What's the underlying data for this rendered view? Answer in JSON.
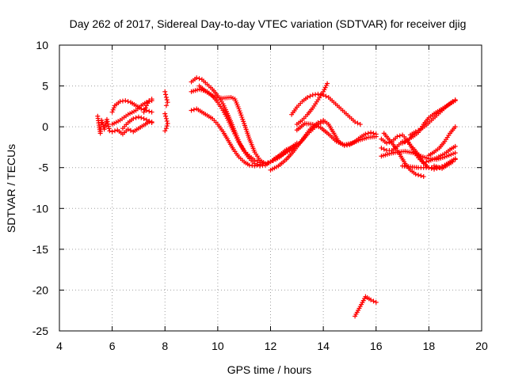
{
  "chart_data": {
    "type": "scatter",
    "title": "Day 262 of 2017, Sidereal Day-to-day VTEC variation (SDTVAR) for receiver djig",
    "xlabel": "GPS time / hours",
    "ylabel": "SDTVAR / TECUs",
    "xlim": [
      4,
      20
    ],
    "ylim": [
      -25,
      10
    ],
    "x_ticks": [
      4,
      6,
      8,
      10,
      12,
      14,
      16,
      18,
      20
    ],
    "y_ticks": [
      -25,
      -20,
      -15,
      -10,
      -5,
      0,
      5,
      10
    ],
    "grid": true,
    "marker": "plus",
    "series_color": "#ff0000",
    "tracks": [
      {
        "name": "t1",
        "points": [
          [
            5.45,
            1.3
          ],
          [
            5.5,
            0.2
          ],
          [
            5.55,
            -0.8
          ],
          [
            5.6,
            0.8
          ],
          [
            5.7,
            -0.3
          ],
          [
            5.8,
            0.9
          ],
          [
            5.9,
            -0.5
          ]
        ]
      },
      {
        "name": "t2",
        "points": [
          [
            6.0,
            -0.6
          ],
          [
            6.2,
            -0.4
          ],
          [
            6.4,
            -0.9
          ],
          [
            6.6,
            -0.3
          ],
          [
            6.8,
            -0.6
          ],
          [
            7.0,
            -0.2
          ],
          [
            7.2,
            0.2
          ],
          [
            7.4,
            0.6
          ],
          [
            7.5,
            0.5
          ]
        ]
      },
      {
        "name": "t3",
        "points": [
          [
            6.0,
            1.8
          ],
          [
            6.1,
            2.6
          ],
          [
            6.3,
            3.1
          ],
          [
            6.5,
            3.2
          ],
          [
            6.7,
            3.0
          ],
          [
            6.9,
            2.6
          ],
          [
            7.1,
            2.2
          ],
          [
            7.3,
            2.0
          ],
          [
            7.5,
            1.8
          ]
        ]
      },
      {
        "name": "t4",
        "points": [
          [
            6.0,
            0.3
          ],
          [
            6.3,
            0.8
          ],
          [
            6.6,
            1.5
          ],
          [
            6.9,
            2.0
          ],
          [
            7.1,
            2.6
          ],
          [
            7.3,
            3.0
          ],
          [
            7.5,
            3.2
          ]
        ]
      },
      {
        "name": "t5",
        "points": [
          [
            6.4,
            -0.2
          ],
          [
            6.6,
            0.5
          ],
          [
            6.8,
            1.0
          ],
          [
            7.0,
            1.2
          ],
          [
            7.2,
            1.0
          ],
          [
            7.4,
            0.7
          ],
          [
            7.5,
            0.6
          ]
        ]
      },
      {
        "name": "t6",
        "points": [
          [
            7.2,
            1.8
          ],
          [
            7.3,
            2.6
          ],
          [
            7.4,
            3.2
          ],
          [
            7.5,
            3.4
          ]
        ]
      },
      {
        "name": "t7",
        "points": [
          [
            8.0,
            4.3
          ],
          [
            8.05,
            3.6
          ],
          [
            8.1,
            3.0
          ],
          [
            8.05,
            2.6
          ]
        ]
      },
      {
        "name": "t8",
        "points": [
          [
            8.0,
            1.6
          ],
          [
            8.05,
            1.0
          ],
          [
            8.1,
            0.4
          ],
          [
            8.05,
            -0.2
          ],
          [
            8.0,
            -0.5
          ]
        ]
      },
      {
        "name": "t9",
        "points": [
          [
            9.0,
            5.5
          ],
          [
            9.2,
            6.0
          ],
          [
            9.4,
            5.8
          ],
          [
            9.6,
            5.2
          ],
          [
            9.8,
            4.6
          ],
          [
            10.0,
            3.8
          ],
          [
            10.2,
            2.8
          ],
          [
            10.4,
            1.4
          ],
          [
            10.6,
            -0.2
          ],
          [
            10.8,
            -1.8
          ],
          [
            11.0,
            -3.0
          ],
          [
            11.2,
            -3.9
          ],
          [
            11.4,
            -4.5
          ],
          [
            11.6,
            -4.8
          ],
          [
            11.8,
            -4.7
          ],
          [
            12.0,
            -4.3
          ],
          [
            12.2,
            -3.8
          ],
          [
            12.5,
            -3.3
          ],
          [
            12.8,
            -2.8
          ],
          [
            13.0,
            -2.3
          ],
          [
            13.2,
            -1.7
          ],
          [
            13.4,
            -0.9
          ],
          [
            13.6,
            -0.3
          ],
          [
            13.8,
            0.3
          ],
          [
            14.0,
            0.6
          ]
        ]
      },
      {
        "name": "t10",
        "points": [
          [
            9.0,
            4.3
          ],
          [
            9.3,
            4.6
          ],
          [
            9.6,
            4.3
          ],
          [
            9.8,
            3.8
          ],
          [
            10.0,
            3.0
          ],
          [
            10.2,
            2.0
          ],
          [
            10.4,
            0.8
          ],
          [
            10.6,
            -0.6
          ],
          [
            10.8,
            -1.9
          ],
          [
            11.0,
            -2.9
          ],
          [
            11.2,
            -3.6
          ],
          [
            11.4,
            -4.1
          ],
          [
            11.6,
            -4.4
          ],
          [
            11.8,
            -4.5
          ],
          [
            12.0,
            -4.3
          ],
          [
            12.2,
            -4.0
          ],
          [
            12.4,
            -3.6
          ],
          [
            12.6,
            -3.0
          ],
          [
            12.8,
            -2.5
          ],
          [
            13.0,
            -2.0
          ]
        ]
      },
      {
        "name": "t11",
        "points": [
          [
            9.3,
            5.0
          ],
          [
            9.6,
            4.2
          ],
          [
            9.9,
            3.6
          ],
          [
            10.2,
            3.5
          ],
          [
            10.5,
            3.6
          ],
          [
            10.65,
            3.4
          ],
          [
            10.8,
            2.2
          ],
          [
            11.0,
            0.4
          ],
          [
            11.2,
            -1.5
          ],
          [
            11.4,
            -3.1
          ],
          [
            11.6,
            -4.1
          ],
          [
            11.8,
            -4.5
          ],
          [
            12.0,
            -4.3
          ],
          [
            12.3,
            -3.6
          ],
          [
            12.6,
            -2.8
          ],
          [
            12.9,
            -2.4
          ]
        ]
      },
      {
        "name": "t12",
        "points": [
          [
            9.0,
            2.0
          ],
          [
            9.2,
            2.2
          ],
          [
            9.4,
            1.8
          ],
          [
            9.6,
            1.4
          ],
          [
            9.8,
            1.0
          ],
          [
            10.0,
            0.3
          ],
          [
            10.2,
            -0.6
          ],
          [
            10.4,
            -1.7
          ],
          [
            10.6,
            -2.8
          ],
          [
            10.8,
            -3.7
          ],
          [
            11.0,
            -4.3
          ],
          [
            11.2,
            -4.7
          ],
          [
            11.4,
            -4.8
          ],
          [
            11.6,
            -4.6
          ]
        ]
      },
      {
        "name": "t13",
        "points": [
          [
            12.0,
            -5.3
          ],
          [
            12.3,
            -4.8
          ],
          [
            12.6,
            -4.0
          ],
          [
            12.9,
            -2.9
          ],
          [
            13.2,
            -1.6
          ],
          [
            13.5,
            -0.3
          ],
          [
            13.8,
            0.5
          ],
          [
            14.0,
            0.8
          ],
          [
            14.2,
            0.3
          ],
          [
            14.4,
            -0.8
          ],
          [
            14.6,
            -1.9
          ],
          [
            14.8,
            -2.3
          ],
          [
            15.0,
            -2.2
          ],
          [
            15.2,
            -1.8
          ],
          [
            15.4,
            -1.3
          ],
          [
            15.6,
            -0.9
          ],
          [
            15.8,
            -0.7
          ],
          [
            16.0,
            -0.9
          ]
        ]
      },
      {
        "name": "t14",
        "points": [
          [
            12.8,
            1.5
          ],
          [
            13.0,
            2.4
          ],
          [
            13.2,
            3.1
          ],
          [
            13.4,
            3.6
          ],
          [
            13.6,
            3.9
          ],
          [
            13.8,
            4.0
          ],
          [
            14.0,
            3.9
          ],
          [
            14.2,
            3.6
          ],
          [
            14.4,
            3.0
          ],
          [
            14.6,
            2.4
          ],
          [
            14.8,
            1.8
          ],
          [
            15.0,
            1.2
          ],
          [
            15.2,
            0.6
          ],
          [
            15.4,
            0.3
          ]
        ]
      },
      {
        "name": "t15",
        "points": [
          [
            13.0,
            0.3
          ],
          [
            13.2,
            0.8
          ],
          [
            13.4,
            1.5
          ],
          [
            13.6,
            2.3
          ],
          [
            13.8,
            3.3
          ],
          [
            14.0,
            4.3
          ],
          [
            14.15,
            5.3
          ]
        ]
      },
      {
        "name": "t16",
        "points": [
          [
            13.0,
            -0.4
          ],
          [
            13.3,
            0.4
          ],
          [
            13.6,
            0.3
          ],
          [
            13.9,
            -0.1
          ],
          [
            14.2,
            -0.9
          ],
          [
            14.5,
            -1.8
          ],
          [
            14.8,
            -2.2
          ],
          [
            15.1,
            -2.0
          ],
          [
            15.4,
            -1.6
          ],
          [
            15.7,
            -1.3
          ],
          [
            16.0,
            -1.2
          ]
        ]
      },
      {
        "name": "t17",
        "points": [
          [
            15.2,
            -23.2
          ],
          [
            15.4,
            -22.0
          ],
          [
            15.6,
            -20.8
          ],
          [
            15.8,
            -21.2
          ],
          [
            16.0,
            -21.5
          ]
        ]
      },
      {
        "name": "t18",
        "points": [
          [
            16.2,
            -1.5
          ],
          [
            16.4,
            -2.0
          ],
          [
            16.6,
            -1.8
          ],
          [
            16.8,
            -1.2
          ],
          [
            17.0,
            -1.0
          ],
          [
            17.2,
            -1.7
          ],
          [
            17.4,
            -2.8
          ],
          [
            17.6,
            -3.8
          ],
          [
            17.8,
            -4.4
          ],
          [
            18.0,
            -4.2
          ],
          [
            18.3,
            -3.8
          ],
          [
            18.6,
            -3.3
          ],
          [
            18.8,
            -2.8
          ],
          [
            19.0,
            -2.4
          ]
        ]
      },
      {
        "name": "t19",
        "points": [
          [
            16.2,
            -3.6
          ],
          [
            16.5,
            -3.3
          ],
          [
            16.8,
            -3.1
          ],
          [
            17.1,
            -3.0
          ],
          [
            17.4,
            -3.2
          ],
          [
            17.7,
            -3.6
          ],
          [
            18.0,
            -3.9
          ],
          [
            18.3,
            -4.0
          ],
          [
            18.6,
            -3.7
          ],
          [
            19.0,
            -3.2
          ]
        ]
      },
      {
        "name": "t20",
        "points": [
          [
            16.2,
            -2.6
          ],
          [
            16.4,
            -2.9
          ],
          [
            16.6,
            -2.9
          ],
          [
            16.8,
            -2.4
          ],
          [
            17.0,
            -1.8
          ],
          [
            17.2,
            -1.9
          ],
          [
            17.4,
            -2.6
          ],
          [
            17.6,
            -3.4
          ],
          [
            17.8,
            -4.5
          ],
          [
            18.0,
            -5.0
          ],
          [
            18.2,
            -5.2
          ],
          [
            18.4,
            -5.0
          ],
          [
            18.6,
            -4.7
          ],
          [
            18.8,
            -4.3
          ],
          [
            19.0,
            -3.9
          ]
        ]
      },
      {
        "name": "t21",
        "points": [
          [
            16.3,
            -0.8
          ],
          [
            16.5,
            -1.6
          ],
          [
            16.7,
            -2.4
          ],
          [
            16.9,
            -3.4
          ],
          [
            17.1,
            -4.5
          ],
          [
            17.3,
            -5.3
          ],
          [
            17.5,
            -5.8
          ],
          [
            17.7,
            -6.0
          ],
          [
            17.8,
            -6.1
          ]
        ]
      },
      {
        "name": "t22",
        "points": [
          [
            17.0,
            -4.8
          ],
          [
            17.3,
            -4.9
          ],
          [
            17.6,
            -5.0
          ],
          [
            17.9,
            -5.0
          ],
          [
            18.2,
            -5.0
          ],
          [
            18.5,
            -5.0
          ]
        ]
      },
      {
        "name": "t23",
        "points": [
          [
            17.0,
            -2.0
          ],
          [
            17.2,
            -1.6
          ],
          [
            17.4,
            -1.2
          ],
          [
            17.6,
            -0.7
          ],
          [
            17.8,
            0.3
          ],
          [
            18.0,
            1.1
          ],
          [
            18.2,
            1.6
          ],
          [
            18.4,
            2.0
          ],
          [
            18.6,
            2.4
          ],
          [
            18.8,
            2.8
          ],
          [
            19.0,
            3.2
          ]
        ]
      },
      {
        "name": "t24",
        "points": [
          [
            17.3,
            -1.0
          ],
          [
            17.5,
            -0.6
          ],
          [
            17.7,
            -0.3
          ],
          [
            17.9,
            0.2
          ],
          [
            18.1,
            0.8
          ],
          [
            18.3,
            1.4
          ],
          [
            18.5,
            2.0
          ],
          [
            18.7,
            2.6
          ],
          [
            18.9,
            3.1
          ],
          [
            19.0,
            3.3
          ]
        ]
      },
      {
        "name": "t25",
        "points": [
          [
            18.0,
            -3.5
          ],
          [
            18.2,
            -3.1
          ],
          [
            18.4,
            -2.6
          ],
          [
            18.6,
            -1.8
          ],
          [
            18.8,
            -0.8
          ],
          [
            19.0,
            0.0
          ]
        ]
      },
      {
        "name": "t26",
        "points": [
          [
            18.2,
            -4.8
          ],
          [
            18.5,
            -5.1
          ],
          [
            18.7,
            -4.7
          ],
          [
            18.9,
            -4.3
          ],
          [
            19.0,
            -4.0
          ]
        ]
      }
    ]
  }
}
